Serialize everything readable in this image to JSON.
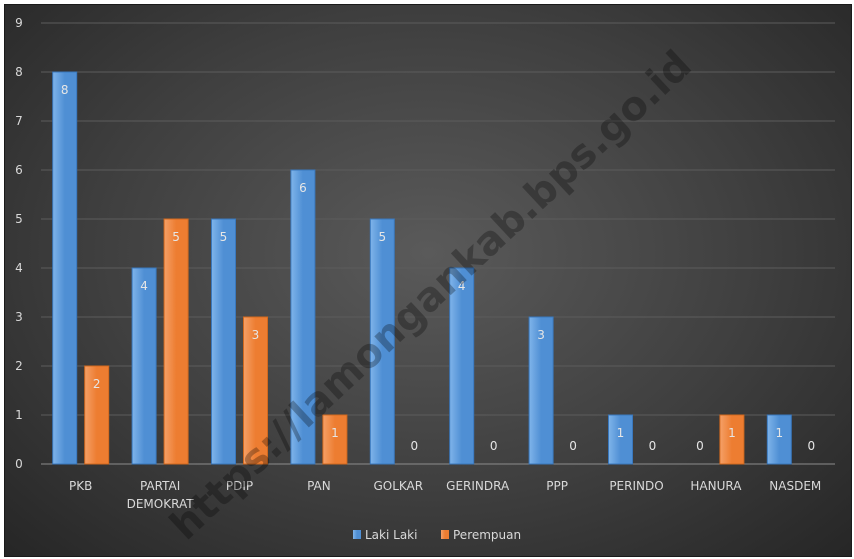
{
  "chart_data": {
    "type": "bar",
    "categories": [
      [
        "PKB"
      ],
      [
        "PARTAI",
        "DEMOKRAT"
      ],
      [
        "PDIP"
      ],
      [
        "PAN"
      ],
      [
        "GOLKAR"
      ],
      [
        "GERINDRA"
      ],
      [
        "PPP"
      ],
      [
        "PERINDO"
      ],
      [
        "HANURA"
      ],
      [
        "NASDEM"
      ]
    ],
    "series": [
      {
        "name": "Laki Laki",
        "values": [
          8,
          4,
          5,
          6,
          5,
          4,
          3,
          1,
          0,
          1
        ],
        "color": "#4f8fd4"
      },
      {
        "name": "Perempuan",
        "values": [
          2,
          5,
          3,
          1,
          0,
          0,
          0,
          0,
          1,
          0
        ],
        "color": "#ed7d31"
      }
    ],
    "ylim": [
      0,
      9
    ],
    "yticks": [
      0,
      1,
      2,
      3,
      4,
      5,
      6,
      7,
      8,
      9
    ],
    "grid": true,
    "legend": "bottom",
    "watermark": "https://lamongankab.bps.go.id"
  }
}
